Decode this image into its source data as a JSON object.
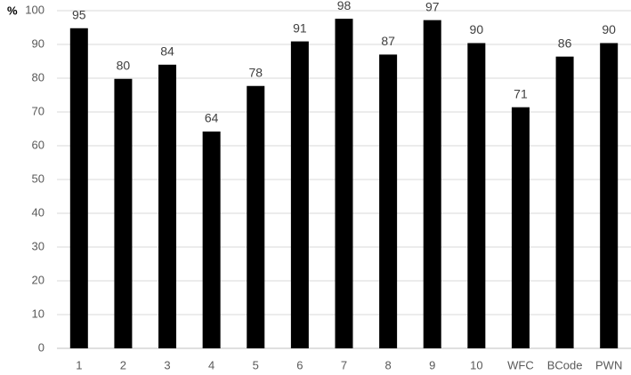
{
  "chart_data": {
    "type": "bar",
    "y_label": "%",
    "categories": [
      "1",
      "2",
      "3",
      "4",
      "5",
      "6",
      "7",
      "8",
      "9",
      "10",
      "WFC",
      "BCode",
      "PWN"
    ],
    "values": [
      94.8,
      79.8,
      84,
      64.2,
      77.7,
      90.9,
      97.6,
      87,
      97.2,
      90.4,
      71.4,
      86.4,
      90.4
    ],
    "value_labels": [
      "95",
      "80",
      "84",
      "64",
      "78",
      "91",
      "98",
      "87",
      "97",
      "90",
      "71",
      "86",
      "90"
    ],
    "color": "#000000",
    "ylim": [
      0,
      100
    ],
    "yticks": [
      0,
      10,
      20,
      30,
      40,
      50,
      60,
      70,
      80,
      90,
      100
    ],
    "grid": true
  }
}
